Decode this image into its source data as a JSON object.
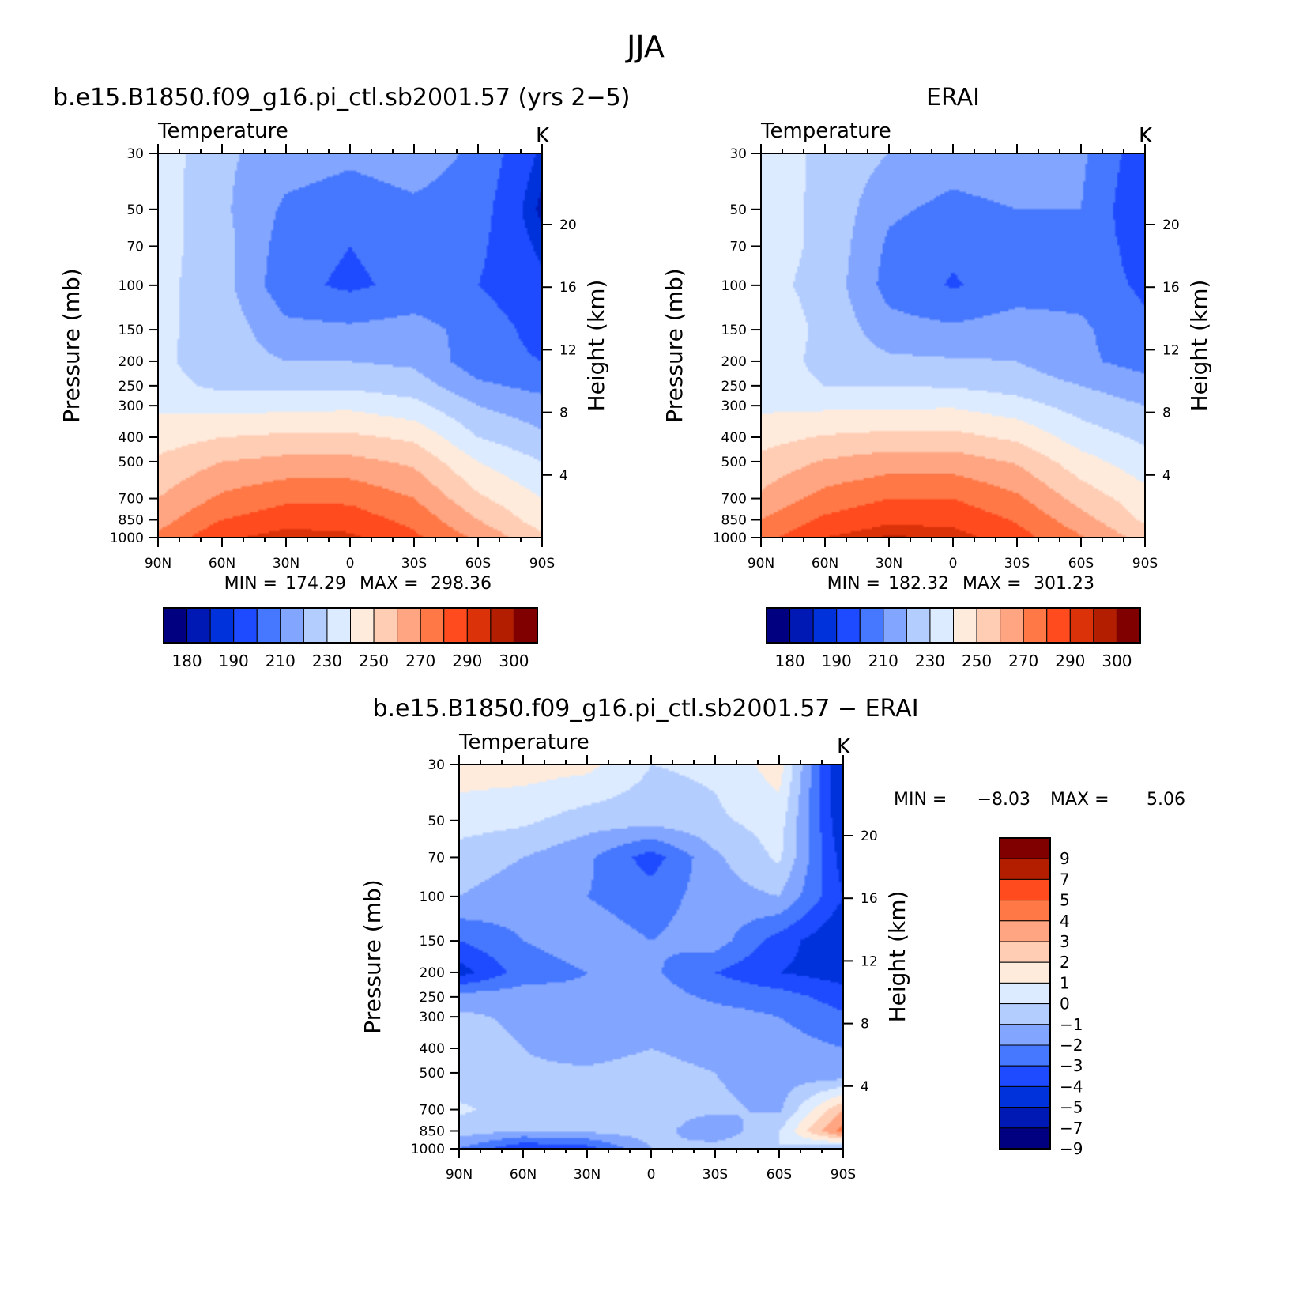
{
  "figure_title": "JJA",
  "palette": {
    "temperature": [
      "#000080",
      "#0019B4",
      "#0032DC",
      "#1E4BFF",
      "#4678FF",
      "#82A5FF",
      "#B4CDFF",
      "#DCEBFF",
      "#FFEBDC",
      "#FFCDB4",
      "#FFA582",
      "#FF7846",
      "#FF4B1E",
      "#DC320A",
      "#B41E00",
      "#800000"
    ],
    "difference": [
      "#000080",
      "#0019B4",
      "#0032DC",
      "#1E4BFF",
      "#4678FF",
      "#82A5FF",
      "#B4CDFF",
      "#DCEBFF",
      "#FFEBDC",
      "#FFCDB4",
      "#FFA582",
      "#FF7846",
      "#FF4B1E",
      "#B41E00",
      "#800000"
    ]
  },
  "chart_data": [
    {
      "type": "heatmap",
      "panel_title": "b.e15.B1850.f09_g16.pi_ctl.sb2001.57 (yrs 2−5)",
      "variable": "Temperature",
      "units": "K",
      "ylabel": "Pressure (mb)",
      "ylabel_right": "Height (km)",
      "x_ticks": [
        "90N",
        "60N",
        "30N",
        "0",
        "30S",
        "60S",
        "90S"
      ],
      "x_range": [
        90,
        -90
      ],
      "y_ticks": [
        30,
        50,
        70,
        100,
        150,
        200,
        250,
        300,
        400,
        500,
        700,
        850,
        1000
      ],
      "y_range": [
        30,
        1000
      ],
      "height_ticks": [
        4,
        8,
        12,
        16,
        20
      ],
      "stats": {
        "min_label": "MIN =",
        "min": "174.29",
        "max_label": "MAX =",
        "max": "298.36"
      },
      "colorbar_labels": [
        "180",
        "190",
        "210",
        "230",
        "250",
        "270",
        "290",
        "300"
      ],
      "colorbar_levels": [
        180,
        185,
        190,
        200,
        210,
        220,
        230,
        240,
        250,
        260,
        270,
        280,
        290,
        295,
        300
      ],
      "lat": [
        90,
        60,
        30,
        0,
        -30,
        -60,
        -90
      ],
      "pressure_levels": [
        30,
        50,
        70,
        100,
        150,
        200,
        250,
        300,
        400,
        500,
        700,
        850,
        1000
      ],
      "values": [
        [
          236,
          222,
          215,
          212,
          215,
          208,
          188
        ],
        [
          235,
          222,
          208,
          205,
          208,
          205,
          183
        ],
        [
          234,
          224,
          205,
          200,
          205,
          202,
          188
        ],
        [
          233,
          224,
          203,
          198,
          203,
          200,
          192
        ],
        [
          232,
          226,
          213,
          212,
          214,
          206,
          196
        ],
        [
          232,
          225,
          220,
          220,
          218,
          204,
          200
        ],
        [
          233,
          228,
          228,
          228,
          225,
          212,
          207
        ],
        [
          238,
          236,
          237,
          238,
          233,
          220,
          214
        ],
        [
          245,
          250,
          252,
          252,
          248,
          230,
          222
        ],
        [
          252,
          260,
          263,
          263,
          258,
          240,
          230
        ],
        [
          260,
          272,
          278,
          278,
          270,
          252,
          240
        ],
        [
          266,
          280,
          286,
          285,
          277,
          260,
          245
        ],
        [
          272,
          288,
          294,
          292,
          282,
          268,
          252
        ]
      ]
    },
    {
      "type": "heatmap",
      "panel_title": "ERAI",
      "variable": "Temperature",
      "units": "K",
      "ylabel": "Pressure (mb)",
      "ylabel_right": "Height (km)",
      "x_ticks": [
        "90N",
        "60N",
        "30N",
        "0",
        "30S",
        "60S",
        "90S"
      ],
      "x_range": [
        90,
        -90
      ],
      "y_ticks": [
        30,
        50,
        70,
        100,
        150,
        200,
        250,
        300,
        400,
        500,
        700,
        850,
        1000
      ],
      "y_range": [
        30,
        1000
      ],
      "height_ticks": [
        4,
        8,
        12,
        16,
        20
      ],
      "stats": {
        "min_label": "MIN =",
        "min": "182.32",
        "max_label": "MAX =",
        "max": "301.23"
      },
      "colorbar_labels": [
        "180",
        "190",
        "210",
        "230",
        "250",
        "270",
        "290",
        "300"
      ],
      "colorbar_levels": [
        180,
        185,
        190,
        200,
        210,
        220,
        230,
        240,
        250,
        260,
        270,
        280,
        290,
        295,
        300
      ],
      "lat": [
        90,
        60,
        30,
        0,
        -30,
        -60,
        -90
      ],
      "pressure_levels": [
        30,
        50,
        70,
        100,
        150,
        200,
        250,
        300,
        400,
        500,
        700,
        850,
        1000
      ],
      "values": [
        [
          235,
          228,
          220,
          215,
          218,
          212,
          193
        ],
        [
          234,
          228,
          212,
          207,
          210,
          210,
          190
        ],
        [
          234,
          228,
          208,
          202,
          207,
          207,
          195
        ],
        [
          233,
          227,
          206,
          199,
          205,
          206,
          198
        ],
        [
          236,
          228,
          214,
          212,
          215,
          212,
          202
        ],
        [
          236,
          227,
          222,
          221,
          220,
          212,
          206
        ],
        [
          235,
          230,
          230,
          229,
          226,
          220,
          214
        ],
        [
          238,
          238,
          238,
          239,
          234,
          226,
          220
        ],
        [
          246,
          251,
          253,
          253,
          248,
          235,
          228
        ],
        [
          253,
          261,
          265,
          265,
          259,
          244,
          234
        ],
        [
          262,
          274,
          280,
          280,
          272,
          256,
          244
        ],
        [
          270,
          282,
          288,
          287,
          279,
          264,
          248
        ],
        [
          276,
          290,
          296,
          294,
          284,
          271,
          256
        ]
      ]
    },
    {
      "type": "heatmap",
      "panel_title": "b.e15.B1850.f09_g16.pi_ctl.sb2001.57 − ERAI",
      "variable": "Temperature",
      "units": "K",
      "ylabel": "Pressure (mb)",
      "ylabel_right": "Height (km)",
      "x_ticks": [
        "90N",
        "60N",
        "30N",
        "0",
        "30S",
        "60S",
        "90S"
      ],
      "x_range": [
        90,
        -90
      ],
      "y_ticks": [
        30,
        50,
        70,
        100,
        150,
        200,
        250,
        300,
        400,
        500,
        700,
        850,
        1000
      ],
      "y_range": [
        30,
        1000
      ],
      "height_ticks": [
        4,
        8,
        12,
        16,
        20
      ],
      "stats": {
        "min_label": "MIN =",
        "min": "−8.03",
        "max_label": "MAX =",
        "max": "5.06"
      },
      "colorbar_labels": [
        "9",
        "7",
        "5",
        "4",
        "3",
        "2",
        "1",
        "0",
        "−1",
        "−2",
        "−3",
        "−4",
        "−5",
        "−7",
        "−9"
      ],
      "colorbar_levels": [
        -9,
        -7,
        -5,
        -4,
        -3,
        -2,
        -1,
        0,
        1,
        2,
        3,
        4,
        5,
        7,
        9
      ],
      "lat": [
        90,
        60,
        30,
        0,
        -30,
        -60,
        -90
      ],
      "pressure_levels": [
        30,
        50,
        70,
        100,
        150,
        200,
        250,
        300,
        400,
        500,
        700,
        850,
        1000
      ],
      "values": [
        [
          0.5,
          0.5,
          0.3,
          -1.0,
          -0.8,
          0.5,
          -6.5
        ],
        [
          -0.5,
          -0.8,
          -1.5,
          -1.6,
          -1.2,
          -0.5,
          -6.0
        ],
        [
          -1.5,
          -2.0,
          -2.8,
          -4.5,
          -2.2,
          -0.8,
          -5.5
        ],
        [
          -2.0,
          -2.5,
          -3.0,
          -3.5,
          -2.5,
          -2.0,
          -5.0
        ],
        [
          -4.0,
          -3.0,
          -2.5,
          -3.0,
          -2.5,
          -4.5,
          -6.0
        ],
        [
          -5.5,
          -3.5,
          -3.0,
          -2.8,
          -4.0,
          -5.0,
          -5.5
        ],
        [
          -2.5,
          -2.5,
          -2.8,
          -2.5,
          -3.2,
          -3.5,
          -4.5
        ],
        [
          -1.8,
          -2.2,
          -2.3,
          -2.2,
          -2.6,
          -3.0,
          -3.8
        ],
        [
          -1.5,
          -2.0,
          -2.5,
          -2.0,
          -2.5,
          -2.5,
          -3.0
        ],
        [
          -1.8,
          -1.8,
          -1.8,
          -1.5,
          -2.0,
          -2.5,
          -2.8
        ],
        [
          -0.8,
          -1.5,
          -1.5,
          -1.6,
          -1.8,
          -2.2,
          2.0
        ],
        [
          -1.5,
          -2.0,
          -1.8,
          -1.5,
          -2.8,
          -1.0,
          3.5
        ],
        [
          -3.0,
          -5.0,
          -4.5,
          -2.0,
          -1.5,
          -1.0,
          -2.0
        ]
      ]
    }
  ]
}
